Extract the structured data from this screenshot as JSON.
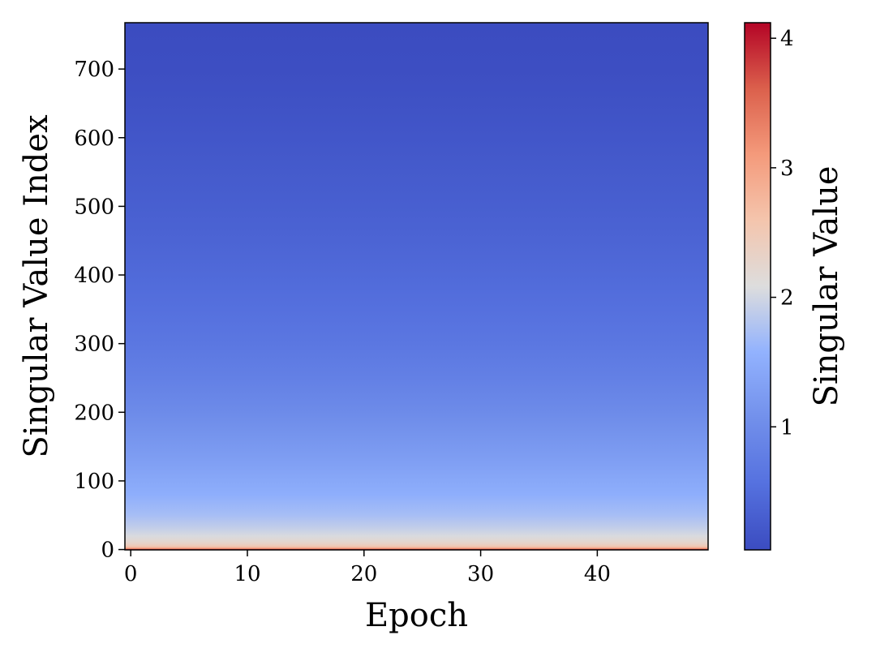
{
  "chart_data": {
    "type": "heatmap",
    "title": "",
    "xlabel": "Epoch",
    "ylabel": "Singular Value Index",
    "xlim": [
      -0.5,
      49.5
    ],
    "ylim": [
      -0.5,
      767.5
    ],
    "x_ticks": [
      0,
      10,
      20,
      30,
      40
    ],
    "x_tick_labels": [
      "0",
      "10",
      "20",
      "30",
      "40"
    ],
    "y_ticks": [
      0,
      100,
      200,
      300,
      400,
      500,
      600,
      700
    ],
    "y_tick_labels": [
      "0",
      "100",
      "200",
      "300",
      "400",
      "500",
      "600",
      "700"
    ],
    "epochs": 50,
    "rows": 768,
    "colormap": "coolwarm",
    "colorbar": {
      "label": "Singular Value",
      "vmin": 0.05,
      "vmax": 4.12,
      "ticks": [
        1,
        2,
        3,
        4
      ],
      "tick_labels": [
        "1",
        "2",
        "3",
        "4"
      ]
    },
    "profile": {
      "index": [
        0,
        1,
        2,
        3,
        5,
        8,
        12,
        20,
        30,
        50,
        80,
        100,
        130,
        160,
        200,
        250,
        300,
        350,
        400,
        450,
        500,
        550,
        600,
        650,
        700,
        767
      ],
      "value": [
        4.12,
        3.4,
        3.0,
        2.75,
        2.5,
        2.35,
        2.22,
        2.05,
        1.92,
        1.72,
        1.52,
        1.42,
        1.28,
        1.15,
        0.98,
        0.8,
        0.66,
        0.55,
        0.46,
        0.38,
        0.31,
        0.25,
        0.19,
        0.13,
        0.08,
        0.05
      ]
    }
  }
}
